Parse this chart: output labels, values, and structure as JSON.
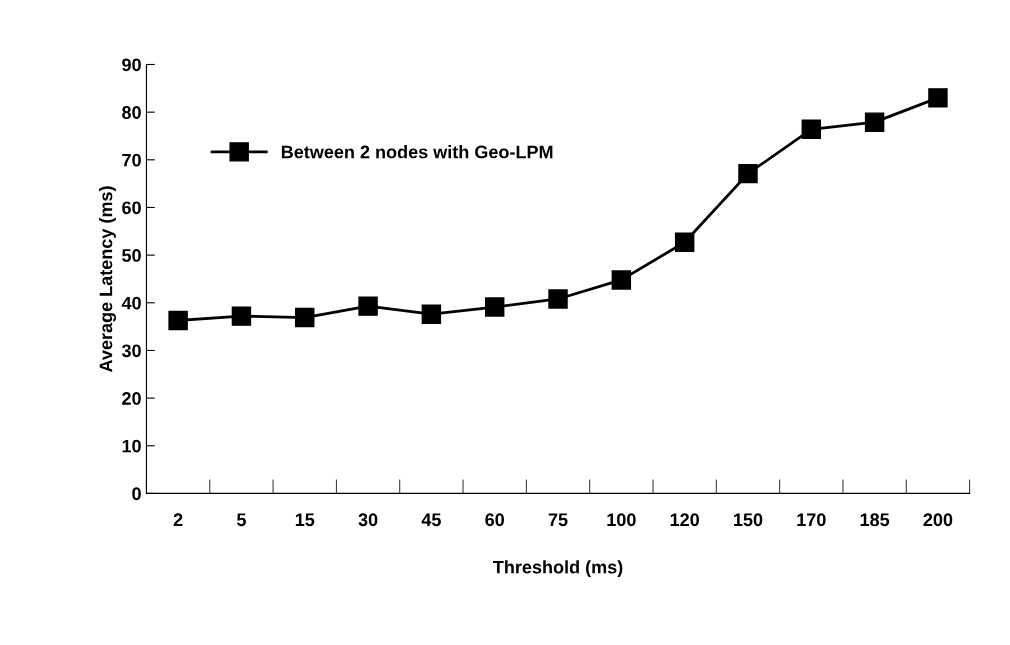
{
  "chart_data": {
    "type": "line",
    "xlabel": "Threshold (ms)",
    "ylabel": "Average Latency (ms)",
    "categories": [
      "2",
      "5",
      "15",
      "30",
      "45",
      "60",
      "75",
      "100",
      "120",
      "150",
      "170",
      "185",
      "200"
    ],
    "series": [
      {
        "name": "Between 2 nodes with Geo-LPM",
        "color": "#000000",
        "values": [
          36.3,
          37.2,
          36.9,
          39.3,
          37.6,
          39.1,
          40.8,
          44.8,
          52.7,
          67.1,
          76.4,
          77.9,
          83.0
        ]
      }
    ],
    "ylim": [
      0,
      90
    ],
    "yticks": [
      0,
      10,
      20,
      30,
      40,
      50,
      60,
      70,
      80,
      90
    ],
    "marker": "square",
    "line_style": "solid",
    "grid": false,
    "legend": "top left"
  }
}
